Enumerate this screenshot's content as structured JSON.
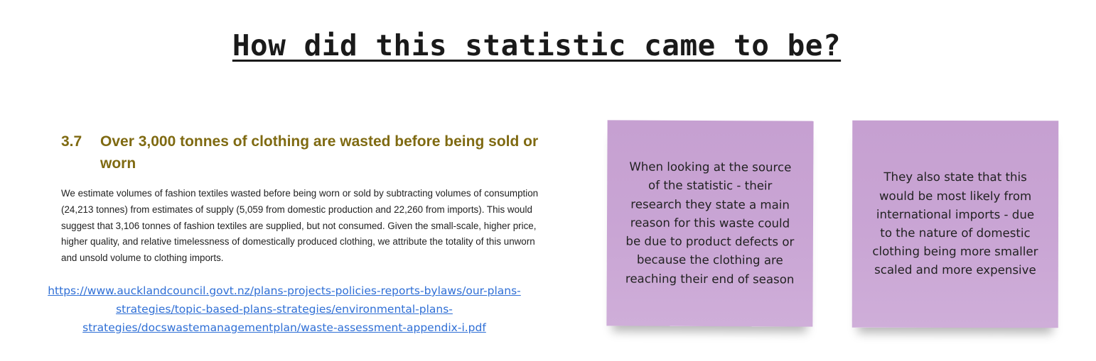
{
  "board": {
    "title": "How did this statistic came to be?"
  },
  "excerpt": {
    "section_number": "3.7",
    "section_title": "Over 3,000 tonnes of clothing are wasted before being sold or worn",
    "body": "We estimate volumes of fashion textiles wasted before being worn or sold by subtracting volumes of consumption (24,213 tonnes) from estimates of supply (5,059 from domestic production and 22,260 from imports). This would suggest that 3,106 tonnes of fashion textiles are supplied, but not consumed. Given the small-scale, higher price, higher quality, and relative timelessness of domestically produced clothing, we attribute the totality of this unworn and unsold volume to clothing imports."
  },
  "source_link": {
    "text": "https://www.aucklandcouncil.govt.nz/plans-projects-policies-reports-bylaws/our-plans-strategies/topic-based-plans-strategies/environmental-plans-strategies/docswastemanagementplan/waste-assessment-appendix-i.pdf",
    "color": "#2f6fd6"
  },
  "sticky_notes": [
    {
      "text": "When looking at the source of the statistic - their research they state a main reason for this waste could be due to product defects or because the clothing are reaching their end of season",
      "color": "#c8a3d3"
    },
    {
      "text": "They also state that this would be most likely from international imports - due to the nature of domestic clothing being more smaller scaled and more expensive",
      "color": "#c8a3d3"
    }
  ],
  "colors": {
    "heading_accent": "#7f6a12",
    "background": "#ffffff"
  }
}
